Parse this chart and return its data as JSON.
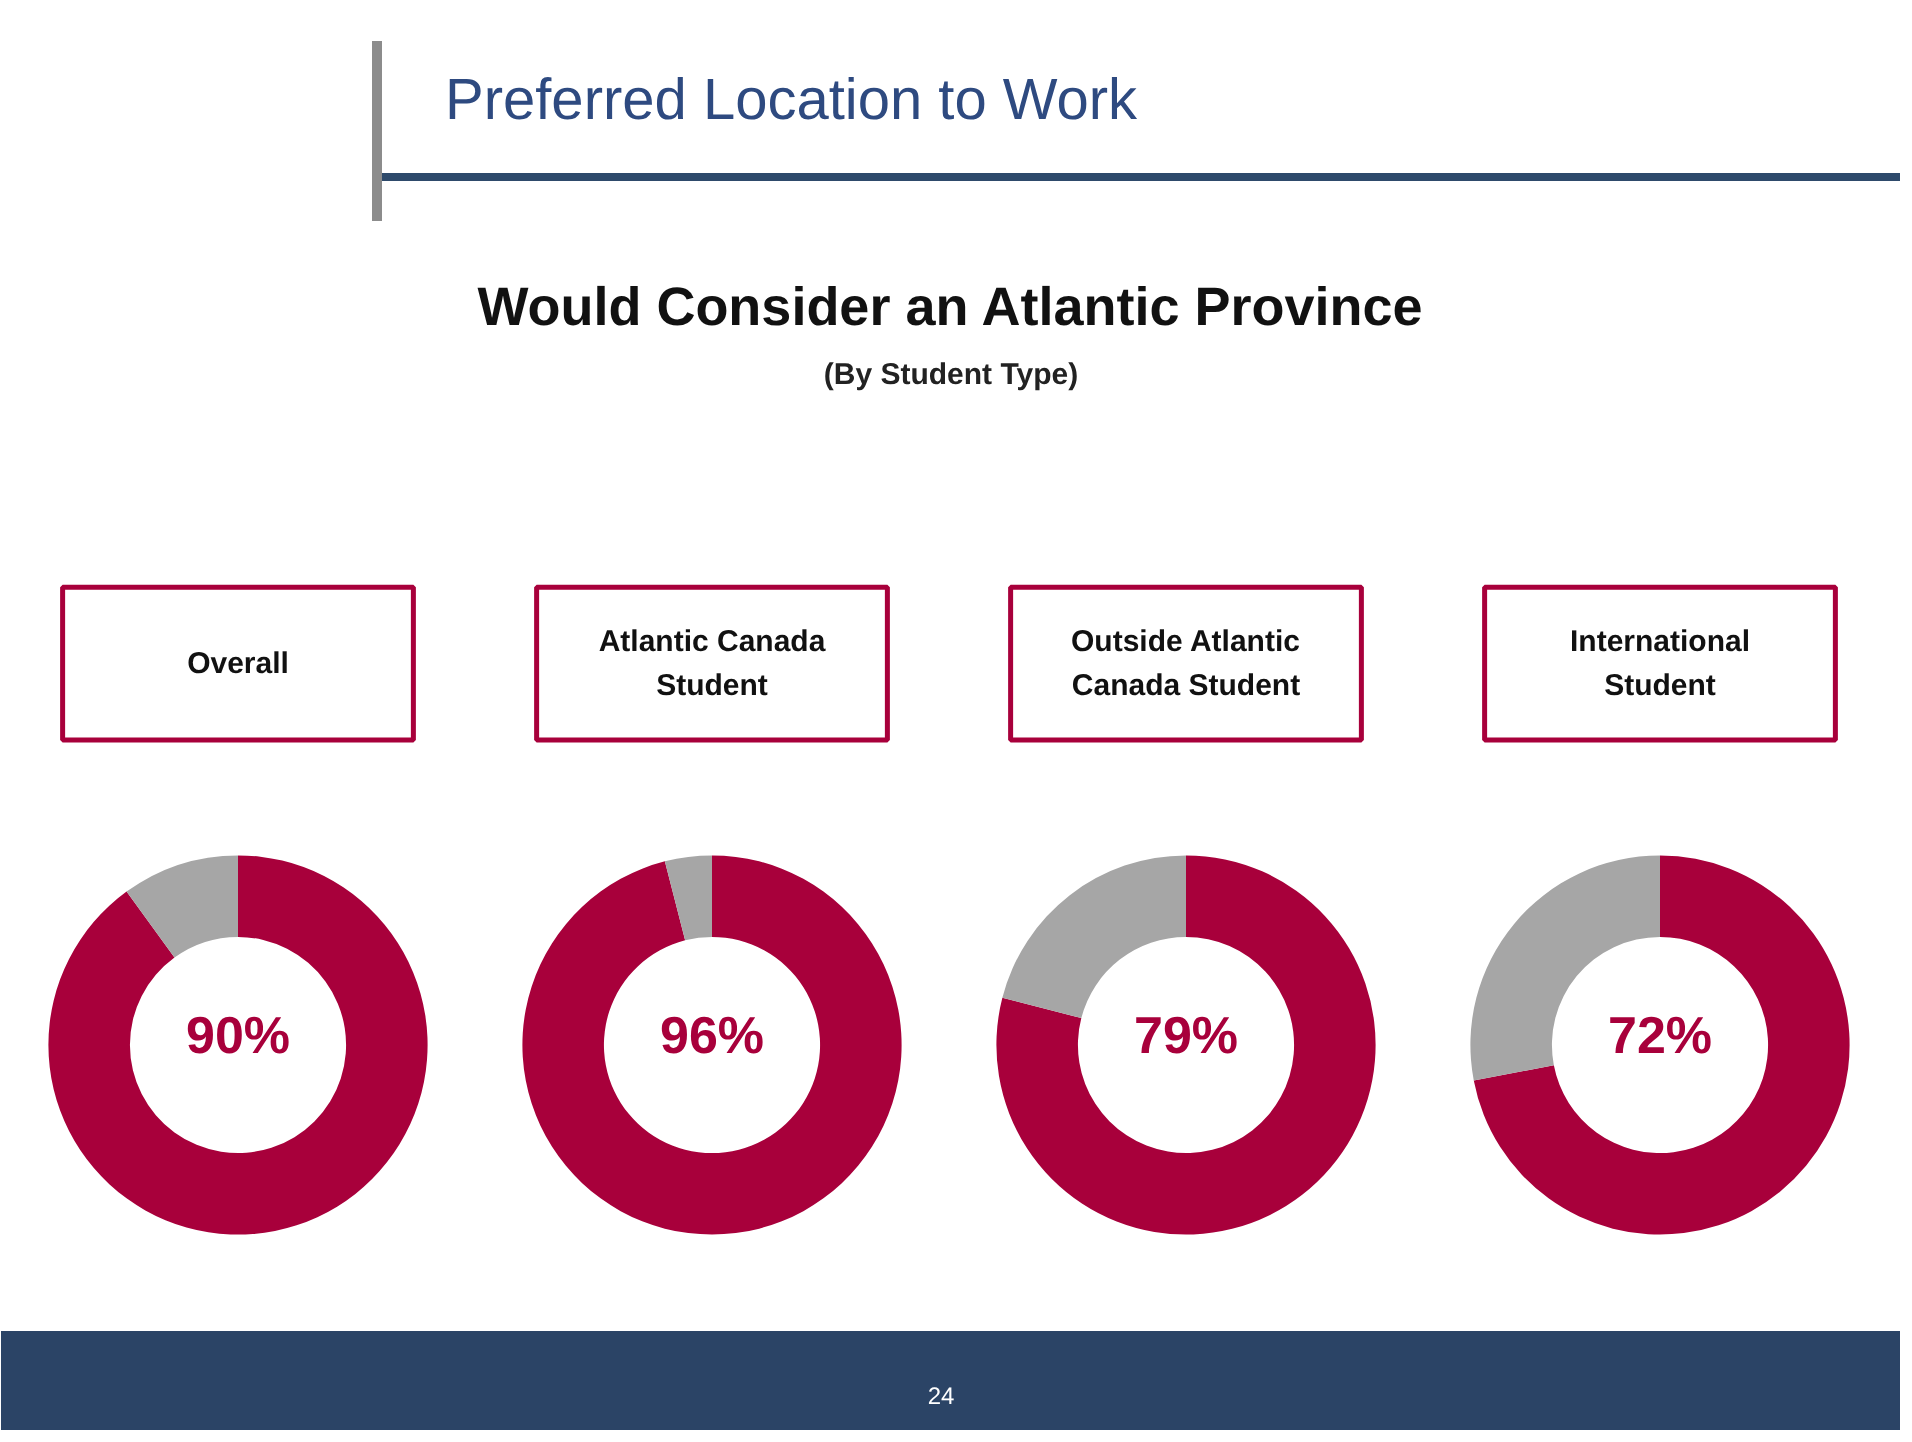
{
  "chart_data": [
    {
      "type": "other",
      "title": "Would Consider an Atlantic Province",
      "subtitle": "(By Student Type)",
      "annotations": [
        "Preferred Location to Work",
        "24"
      ]
    },
    {
      "type": "donut",
      "title": "Overall",
      "categories": [
        null,
        null
      ],
      "values": [
        90,
        10
      ],
      "colors": [
        "#a8003b",
        "#a6a6a6"
      ],
      "value_labels": [
        "90%",
        null
      ]
    },
    {
      "type": "donut",
      "title": "Atlantic Canada Student",
      "categories": [
        null,
        null
      ],
      "values": [
        96,
        4
      ],
      "colors": [
        "#a8003b",
        "#a6a6a6"
      ],
      "value_labels": [
        "96%",
        null
      ]
    },
    {
      "type": "donut",
      "title": "Outside Atlantic Canada Student",
      "categories": [
        null,
        null
      ],
      "values": [
        79,
        21
      ],
      "colors": [
        "#a8003b",
        "#a6a6a6"
      ],
      "value_labels": [
        "79%",
        null
      ]
    },
    {
      "type": "donut",
      "title": "International Student",
      "categories": [
        null,
        null
      ],
      "values": [
        72,
        28
      ],
      "colors": [
        "#a8003b",
        "#a6a6a6"
      ],
      "value_labels": [
        "72%",
        null
      ]
    }
  ]
}
